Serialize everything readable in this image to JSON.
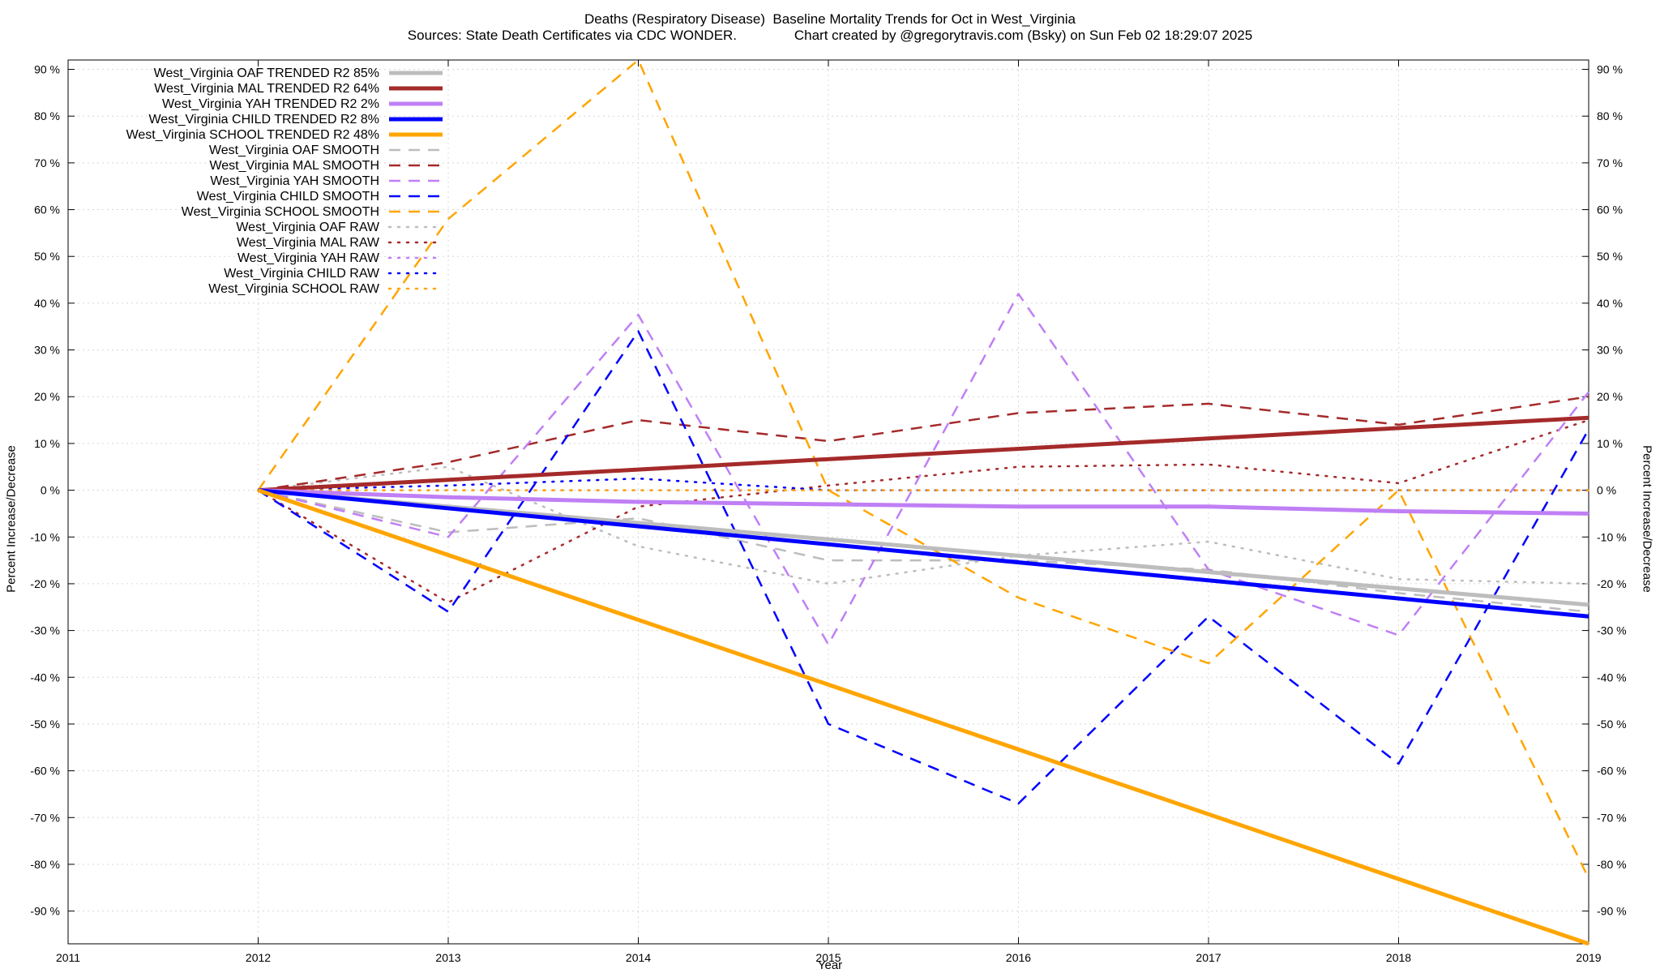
{
  "chart_data": {
    "type": "line",
    "title": "Deaths (Respiratory Disease)  Baseline Mortality Trends for Oct in West_Virginia",
    "subtitle": "Sources: State Death Certificates via CDC WONDER.               Chart created by @gregorytravis.com (Bsky) on Sun Feb 02 18:29:07 2025",
    "xlabel": "Year",
    "ylabel": "Percent Increase/Decrease",
    "xlim": [
      2011,
      2019
    ],
    "ylim": [
      -97,
      92
    ],
    "x_ticks": [
      "2011",
      "2012",
      "2013",
      "2014",
      "2015",
      "2016",
      "2017",
      "2018",
      "2019"
    ],
    "y_ticks": [
      "90 %",
      "80 %",
      "70 %",
      "60 %",
      "50 %",
      "40 %",
      "30 %",
      "20 %",
      "10 %",
      "0 %",
      "-10 %",
      "-20 %",
      "-30 %",
      "-40 %",
      "-50 %",
      "-60 %",
      "-70 %",
      "-80 %",
      "-90 %"
    ],
    "grid": true,
    "legend_position": "top-left",
    "series": [
      {
        "name": "West_Virginia OAF TRENDED R2  85%",
        "style": "solid",
        "color": "#bdbdbd",
        "x": [
          2012,
          2019
        ],
        "y": [
          0,
          -24.5
        ]
      },
      {
        "name": "West_Virginia MAL TRENDED R2  64%",
        "style": "solid",
        "color": "#a52a2a",
        "x": [
          2012,
          2019
        ],
        "y": [
          0,
          15.5
        ]
      },
      {
        "name": "West_Virginia YAH TRENDED R2   2%",
        "style": "solid",
        "color": "#c07ff5",
        "x": [
          2012,
          2013,
          2014,
          2015,
          2016,
          2017,
          2018,
          2019
        ],
        "y": [
          0,
          -1.5,
          -2.5,
          -3,
          -3.5,
          -3.5,
          -4.5,
          -5
        ]
      },
      {
        "name": "West_Virginia CHILD TRENDED R2   8%",
        "style": "solid",
        "color": "#0000ff",
        "x": [
          2012,
          2019
        ],
        "y": [
          0,
          -27
        ]
      },
      {
        "name": "West_Virginia SCHOOL TRENDED R2  48%",
        "style": "solid",
        "color": "#ffa500",
        "x": [
          2012,
          2019
        ],
        "y": [
          0,
          -97
        ]
      },
      {
        "name": "West_Virginia OAF SMOOTH",
        "style": "dashed",
        "color": "#bdbdbd",
        "x": [
          2012,
          2013,
          2014,
          2015,
          2016,
          2017,
          2018,
          2019
        ],
        "y": [
          0,
          -9,
          -6,
          -15,
          -15,
          -17,
          -22,
          -26
        ]
      },
      {
        "name": "West_Virginia MAL SMOOTH",
        "style": "dashed",
        "color": "#a52a2a",
        "x": [
          2012,
          2013,
          2014,
          2015,
          2016,
          2017,
          2018,
          2019
        ],
        "y": [
          0,
          6,
          15,
          10.5,
          16.5,
          18.5,
          14,
          20
        ]
      },
      {
        "name": "West_Virginia YAH SMOOTH",
        "style": "dashed",
        "color": "#c07ff5",
        "x": [
          2012,
          2013,
          2014,
          2015,
          2016,
          2017,
          2018,
          2019
        ],
        "y": [
          0,
          -10,
          37.5,
          -33,
          42,
          -17,
          -31,
          21
        ]
      },
      {
        "name": "West_Virginia CHILD SMOOTH",
        "style": "dashed",
        "color": "#0000ff",
        "x": [
          2012,
          2013,
          2014,
          2015,
          2016,
          2017,
          2018,
          2019
        ],
        "y": [
          0,
          -26,
          34,
          -50,
          -67,
          -27,
          -58.5,
          13
        ]
      },
      {
        "name": "West_Virginia SCHOOL SMOOTH",
        "style": "dashed",
        "color": "#ffa500",
        "x": [
          2012,
          2013,
          2014,
          2015,
          2016,
          2017,
          2018,
          2019
        ],
        "y": [
          0,
          58,
          92,
          0,
          -23,
          -37,
          0,
          -83
        ]
      },
      {
        "name": "West_Virginia OAF RAW",
        "style": "dotted",
        "color": "#bdbdbd",
        "x": [
          2012,
          2013,
          2014,
          2015,
          2016,
          2017,
          2018,
          2019
        ],
        "y": [
          0,
          5,
          -12,
          -20,
          -14,
          -11,
          -19,
          -20
        ]
      },
      {
        "name": "West_Virginia MAL RAW",
        "style": "dotted",
        "color": "#a52a2a",
        "x": [
          2012,
          2013,
          2014,
          2015,
          2016,
          2017,
          2018,
          2019
        ],
        "y": [
          0,
          -24,
          -3.5,
          1,
          5,
          5.5,
          1.5,
          15
        ]
      },
      {
        "name": "West_Virginia YAH RAW",
        "style": "dotted",
        "color": "#c07ff5",
        "x": [
          2012,
          2013,
          2014,
          2015,
          2016,
          2017,
          2018,
          2019
        ],
        "y": [
          0,
          0,
          0,
          0,
          0,
          0,
          0,
          0
        ]
      },
      {
        "name": "West_Virginia CHILD RAW",
        "style": "dotted",
        "color": "#0000ff",
        "x": [
          2012,
          2013,
          2014,
          2015,
          2016,
          2017,
          2018,
          2019
        ],
        "y": [
          0,
          1,
          2.5,
          0,
          0,
          0,
          0,
          0
        ]
      },
      {
        "name": "West_Virginia SCHOOL RAW",
        "style": "dotted",
        "color": "#ffa500",
        "x": [
          2012,
          2013,
          2014,
          2015,
          2016,
          2017,
          2018,
          2019
        ],
        "y": [
          0,
          0,
          0,
          0,
          0,
          0,
          0,
          0
        ]
      }
    ]
  }
}
